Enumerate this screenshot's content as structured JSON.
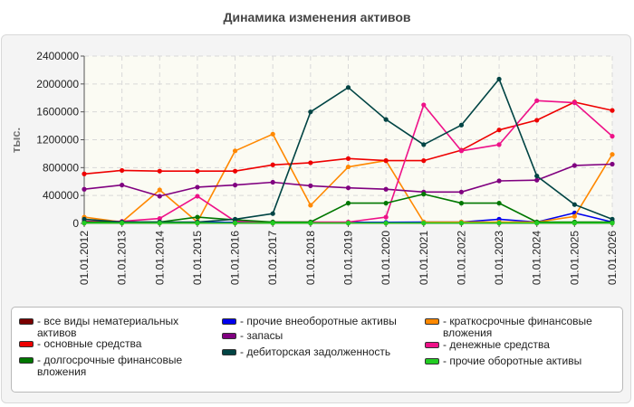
{
  "chart_data": {
    "type": "line",
    "title": "Динамика изменения активов",
    "ylabel": "тыс.",
    "xlabel": "",
    "ylim": [
      0,
      2400000
    ],
    "yticks": [
      0,
      400000,
      800000,
      1200000,
      1600000,
      2000000,
      2400000
    ],
    "ytick_labels": [
      "0",
      "400000",
      "800000",
      "1200000",
      "1600000",
      "2000000",
      "2400000"
    ],
    "grid": true,
    "legend_position": "bottom",
    "categories": [
      "01.01.2012",
      "01.01.2013",
      "01.01.2014",
      "01.01.2015",
      "01.01.2016",
      "01.01.2017",
      "01.01.2018",
      "01.01.2019",
      "01.01.2020",
      "01.01.2021",
      "01.01.2022",
      "01.01.2023",
      "01.01.2024",
      "01.01.2025",
      "01.01.2026"
    ],
    "series": [
      {
        "name": "- все виды нематериальных активов",
        "color": "#7a0000",
        "values": [
          5000,
          5000,
          5000,
          5000,
          5000,
          5000,
          5000,
          5000,
          5000,
          5000,
          5000,
          5000,
          5000,
          5000,
          5000
        ]
      },
      {
        "name": "- прочие внеоборотные активы",
        "color": "#0000ee",
        "values": [
          20000,
          20000,
          15000,
          15000,
          15000,
          15000,
          15000,
          15000,
          15000,
          20000,
          20000,
          60000,
          20000,
          150000,
          20000
        ]
      },
      {
        "name": "- краткосрочные финансовые вложения",
        "color": "#ff8800",
        "values": [
          90000,
          20000,
          480000,
          20000,
          1040000,
          1280000,
          260000,
          810000,
          900000,
          20000,
          20000,
          20000,
          20000,
          100000,
          990000
        ]
      },
      {
        "name": "- основные средства",
        "color": "#ee0000",
        "values": [
          710000,
          760000,
          750000,
          750000,
          750000,
          840000,
          870000,
          930000,
          900000,
          900000,
          1050000,
          1340000,
          1480000,
          1740000,
          1620000
        ]
      },
      {
        "name": "- запасы",
        "color": "#800080",
        "values": [
          490000,
          550000,
          390000,
          520000,
          550000,
          590000,
          540000,
          510000,
          490000,
          450000,
          450000,
          610000,
          620000,
          830000,
          850000
        ]
      },
      {
        "name": "- денежные средства",
        "color": "#ee1188",
        "values": [
          30000,
          30000,
          70000,
          390000,
          30000,
          20000,
          20000,
          20000,
          90000,
          1700000,
          1040000,
          1130000,
          1760000,
          1730000,
          1250000
        ]
      },
      {
        "name": "- долгосрочные финансовые вложения",
        "color": "#007700",
        "values": [
          20000,
          20000,
          20000,
          90000,
          50000,
          20000,
          20000,
          290000,
          290000,
          420000,
          290000,
          290000,
          20000,
          20000,
          20000
        ]
      },
      {
        "name": "- дебиторская задолженность",
        "color": "#004444",
        "values": [
          60000,
          20000,
          20000,
          20000,
          60000,
          140000,
          1600000,
          1950000,
          1490000,
          1130000,
          1410000,
          2070000,
          680000,
          270000,
          60000
        ]
      },
      {
        "name": "- прочие оборотные активы",
        "color": "#22cc22",
        "values": [
          5000,
          5000,
          5000,
          5000,
          5000,
          5000,
          5000,
          5000,
          5000,
          5000,
          5000,
          5000,
          5000,
          5000,
          5000
        ]
      }
    ]
  }
}
